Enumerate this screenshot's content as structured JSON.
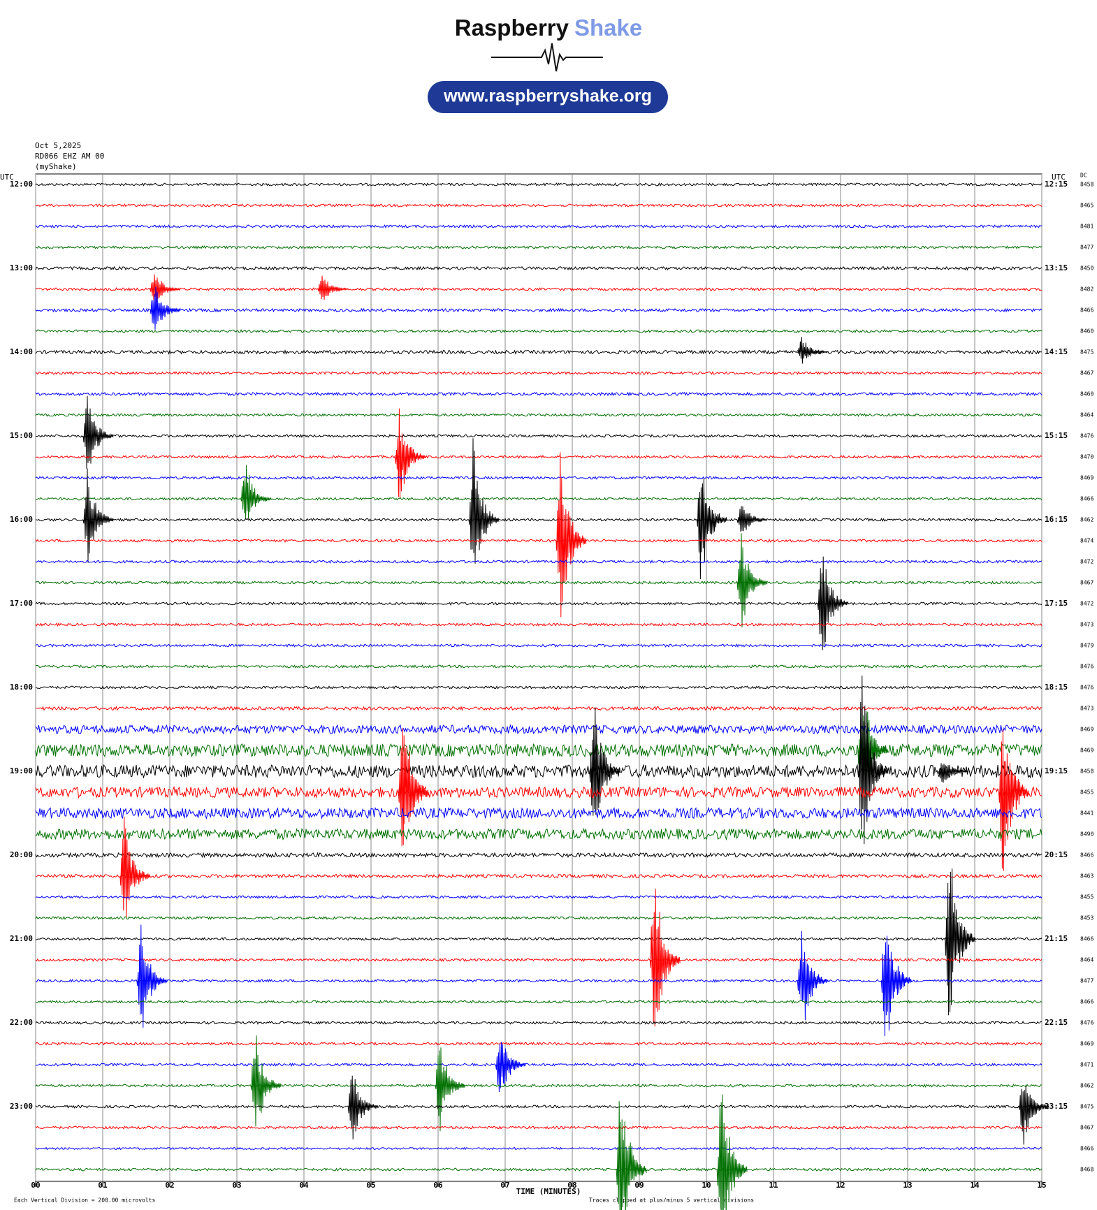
{
  "header": {
    "brand": "Raspberry",
    "brand_accent": "Shake",
    "url": "www.raspberryshake.org"
  },
  "chart_data": {
    "type": "helicorder",
    "date": "Oct 5,2025",
    "station": "RD066 EHZ AM 00",
    "source": "(myShake)",
    "left_axis_label": "UTC",
    "right_axis_label": "UTC",
    "dc_label": "DC",
    "x_label": "TIME (MINUTES)",
    "scale_note": "Each Vertical Division =  200.00 microvolts",
    "clip_note": "Traces clipped at plus/minus 5 vertical divisions",
    "clip_divisions": 5,
    "colors": [
      "#000000",
      "#ff0000",
      "#0000ff",
      "#007000"
    ],
    "xlim": [
      0,
      15
    ],
    "xticks": [
      {
        "value": 0,
        "label": "00"
      },
      {
        "value": 1,
        "label": "01"
      },
      {
        "value": 2,
        "label": "02"
      },
      {
        "value": 3,
        "label": "03"
      },
      {
        "value": 4,
        "label": "04"
      },
      {
        "value": 5,
        "label": "05"
      },
      {
        "value": 6,
        "label": "06"
      },
      {
        "value": 7,
        "label": "07"
      },
      {
        "value": 8,
        "label": "08"
      },
      {
        "value": 9,
        "label": "09"
      },
      10,
      11,
      12,
      13,
      14,
      15
    ],
    "traces": [
      {
        "start": "12:00",
        "end": "12:15",
        "dc": 8458,
        "noise": 0.06,
        "events": []
      },
      {
        "start": null,
        "end": null,
        "dc": 8465,
        "noise": 0.06,
        "events": []
      },
      {
        "start": null,
        "end": null,
        "dc": 8481,
        "noise": 0.06,
        "events": []
      },
      {
        "start": null,
        "end": null,
        "dc": 8477,
        "noise": 0.06,
        "events": []
      },
      {
        "start": "13:00",
        "end": "13:15",
        "dc": 8450,
        "noise": 0.07,
        "events": []
      },
      {
        "start": null,
        "end": null,
        "dc": 8482,
        "noise": 0.06,
        "events": [
          {
            "t": 1.75,
            "amp": 1
          },
          {
            "t": 4.25,
            "amp": 0.8
          }
        ]
      },
      {
        "start": null,
        "end": null,
        "dc": 8466,
        "noise": 0.07,
        "events": [
          {
            "t": 1.75,
            "amp": 1.5
          }
        ]
      },
      {
        "start": null,
        "end": null,
        "dc": 8460,
        "noise": 0.06,
        "events": []
      },
      {
        "start": "14:00",
        "end": "14:15",
        "dc": 8475,
        "noise": 0.08,
        "events": [
          {
            "t": 11.4,
            "amp": 0.8
          }
        ]
      },
      {
        "start": null,
        "end": null,
        "dc": 8467,
        "noise": 0.06,
        "events": []
      },
      {
        "start": null,
        "end": null,
        "dc": 8460,
        "noise": 0.07,
        "events": []
      },
      {
        "start": null,
        "end": null,
        "dc": 8464,
        "noise": 0.06,
        "events": []
      },
      {
        "start": "15:00",
        "end": "15:15",
        "dc": 8476,
        "noise": 0.06,
        "events": [
          {
            "t": 0.75,
            "amp": 2.3
          }
        ]
      },
      {
        "start": null,
        "end": null,
        "dc": 8470,
        "noise": 0.06,
        "events": [
          {
            "t": 5.4,
            "amp": 2.5
          }
        ]
      },
      {
        "start": null,
        "end": null,
        "dc": 8469,
        "noise": 0.06,
        "events": []
      },
      {
        "start": null,
        "end": null,
        "dc": 8466,
        "noise": 0.06,
        "events": [
          {
            "t": 3.1,
            "amp": 2
          }
        ]
      },
      {
        "start": "16:00",
        "end": "16:15",
        "dc": 8462,
        "noise": 0.06,
        "events": [
          {
            "t": 0.75,
            "amp": 2.5
          },
          {
            "t": 6.5,
            "amp": 4
          },
          {
            "t": 9.9,
            "amp": 3.5
          },
          {
            "t": 10.5,
            "amp": 1
          }
        ]
      },
      {
        "start": null,
        "end": null,
        "dc": 8474,
        "noise": 0.06,
        "events": [
          {
            "t": 7.8,
            "amp": 5
          }
        ]
      },
      {
        "start": null,
        "end": null,
        "dc": 8472,
        "noise": 0.06,
        "events": []
      },
      {
        "start": null,
        "end": null,
        "dc": 8467,
        "noise": 0.06,
        "events": [
          {
            "t": 10.5,
            "amp": 2.5
          }
        ]
      },
      {
        "start": "17:00",
        "end": "17:15",
        "dc": 8472,
        "noise": 0.06,
        "events": [
          {
            "t": 11.7,
            "amp": 3
          }
        ]
      },
      {
        "start": null,
        "end": null,
        "dc": 8473,
        "noise": 0.06,
        "events": []
      },
      {
        "start": null,
        "end": null,
        "dc": 8479,
        "noise": 0.06,
        "events": []
      },
      {
        "start": null,
        "end": null,
        "dc": 8476,
        "noise": 0.06,
        "events": []
      },
      {
        "start": "18:00",
        "end": "18:15",
        "dc": 8476,
        "noise": 0.06,
        "events": []
      },
      {
        "start": null,
        "end": null,
        "dc": 8473,
        "noise": 0.08,
        "events": []
      },
      {
        "start": null,
        "end": null,
        "dc": 8469,
        "noise": 0.2,
        "events": []
      },
      {
        "start": null,
        "end": null,
        "dc": 8469,
        "noise": 0.3,
        "events": [
          {
            "t": 12.3,
            "amp": 4
          }
        ]
      },
      {
        "start": "19:00",
        "end": "19:15",
        "dc": 8458,
        "noise": 0.3,
        "events": [
          {
            "t": 8.3,
            "amp": 4
          },
          {
            "t": 12.3,
            "amp": 5
          },
          {
            "t": 13.5,
            "amp": 0.8
          }
        ]
      },
      {
        "start": null,
        "end": null,
        "dc": 8455,
        "noise": 0.25,
        "events": [
          {
            "t": 5.45,
            "amp": 5
          },
          {
            "t": 14.4,
            "amp": 5
          }
        ]
      },
      {
        "start": null,
        "end": null,
        "dc": 8441,
        "noise": 0.25,
        "events": []
      },
      {
        "start": null,
        "end": null,
        "dc": 8490,
        "noise": 0.25,
        "events": []
      },
      {
        "start": "20:00",
        "end": "20:15",
        "dc": 8466,
        "noise": 0.1,
        "events": []
      },
      {
        "start": null,
        "end": null,
        "dc": 8463,
        "noise": 0.08,
        "events": [
          {
            "t": 1.3,
            "amp": 3
          }
        ]
      },
      {
        "start": null,
        "end": null,
        "dc": 8455,
        "noise": 0.06,
        "events": []
      },
      {
        "start": null,
        "end": null,
        "dc": 8453,
        "noise": 0.06,
        "events": []
      },
      {
        "start": "21:00",
        "end": "21:15",
        "dc": 8466,
        "noise": 0.06,
        "events": [
          {
            "t": 13.6,
            "amp": 5
          }
        ]
      },
      {
        "start": null,
        "end": null,
        "dc": 8464,
        "noise": 0.06,
        "events": [
          {
            "t": 9.2,
            "amp": 5
          }
        ]
      },
      {
        "start": null,
        "end": null,
        "dc": 8477,
        "noise": 0.06,
        "events": [
          {
            "t": 1.55,
            "amp": 3
          },
          {
            "t": 11.4,
            "amp": 3
          },
          {
            "t": 12.65,
            "amp": 4
          }
        ]
      },
      {
        "start": null,
        "end": null,
        "dc": 8466,
        "noise": 0.06,
        "events": []
      },
      {
        "start": "22:00",
        "end": "22:15",
        "dc": 8476,
        "noise": 0.06,
        "events": []
      },
      {
        "start": null,
        "end": null,
        "dc": 8469,
        "noise": 0.06,
        "events": []
      },
      {
        "start": null,
        "end": null,
        "dc": 8471,
        "noise": 0.06,
        "events": [
          {
            "t": 6.9,
            "amp": 2
          }
        ]
      },
      {
        "start": null,
        "end": null,
        "dc": 8462,
        "noise": 0.06,
        "events": [
          {
            "t": 3.25,
            "amp": 3
          },
          {
            "t": 6.0,
            "amp": 2.5
          }
        ]
      },
      {
        "start": "23:00",
        "end": "23:15",
        "dc": 8475,
        "noise": 0.06,
        "events": [
          {
            "t": 4.7,
            "amp": 2
          },
          {
            "t": 14.7,
            "amp": 2
          }
        ]
      },
      {
        "start": null,
        "end": null,
        "dc": 8467,
        "noise": 0.06,
        "events": []
      },
      {
        "start": null,
        "end": null,
        "dc": 8466,
        "noise": 0.05,
        "events": []
      },
      {
        "start": null,
        "end": null,
        "dc": 8468,
        "noise": 0.06,
        "events": [
          {
            "t": 8.7,
            "amp": 5
          },
          {
            "t": 10.2,
            "amp": 5
          }
        ]
      }
    ]
  }
}
